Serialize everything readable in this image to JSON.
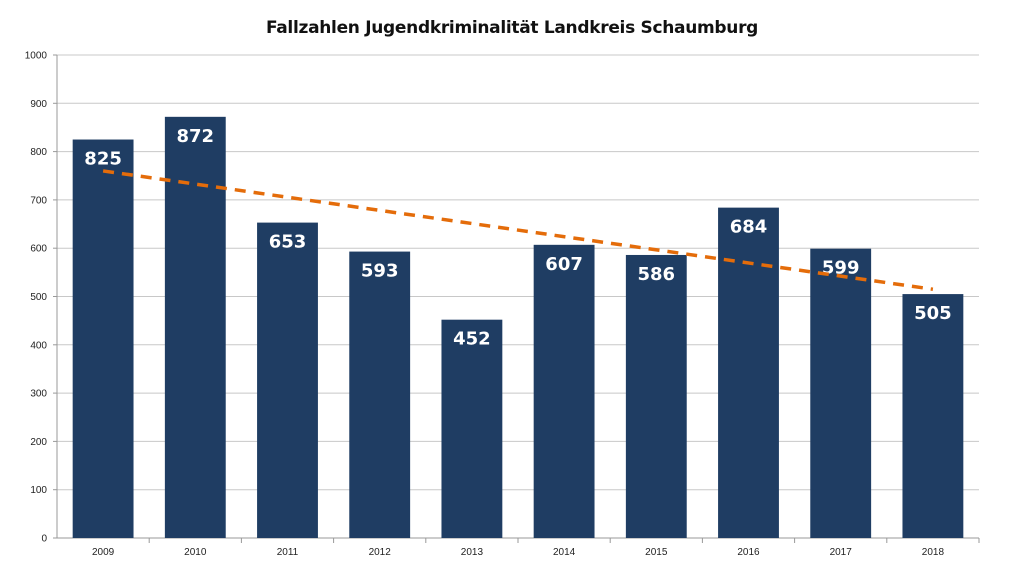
{
  "chart_data": {
    "type": "bar",
    "title": "Fallzahlen Jugendkriminalität Landkreis Schaumburg",
    "xlabel": "",
    "ylabel": "",
    "categories": [
      "2009",
      "2010",
      "2011",
      "2012",
      "2013",
      "2014",
      "2015",
      "2016",
      "2017",
      "2018"
    ],
    "values": [
      825,
      872,
      653,
      593,
      452,
      607,
      586,
      684,
      599,
      505
    ],
    "data_labels": [
      "825",
      "872",
      "653",
      "593",
      "452",
      "607",
      "586",
      "684",
      "599",
      "505"
    ],
    "ylim": [
      0,
      1000
    ],
    "yticks": [
      0,
      100,
      200,
      300,
      400,
      500,
      600,
      700,
      800,
      900,
      1000
    ],
    "grid": true,
    "legend": "none",
    "trendline": {
      "type": "linear",
      "style": "dashed",
      "start_value": 760,
      "end_value": 515
    },
    "colors": {
      "bar": "#1f3d63",
      "trend": "#e46c0a",
      "grid": "#c8c8c8"
    }
  }
}
